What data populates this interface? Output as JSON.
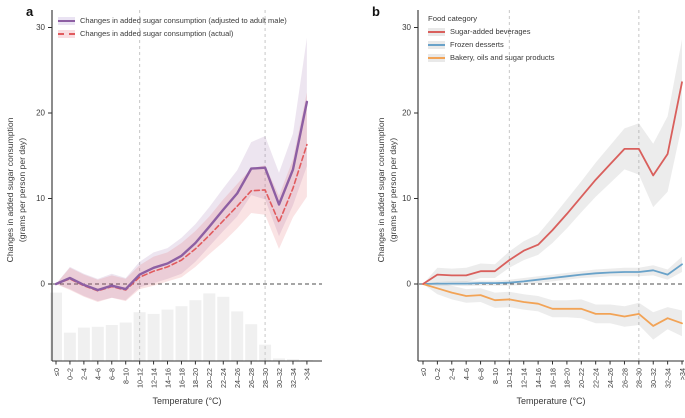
{
  "figure": {
    "panel_labels": [
      "a",
      "b"
    ]
  },
  "chart_data": [
    {
      "type": "line",
      "panel": "a",
      "xlabel": "Temperature (°C)",
      "ylabel_line1": "Changes in added sugar consumption",
      "ylabel_line2": "(grams per person per day)",
      "categories": [
        "≤0",
        "0–2",
        "2–4",
        "4–6",
        "6–8",
        "8–10",
        "10–12",
        "12–14",
        "14–16",
        "16–18",
        "18–20",
        "20–22",
        "22–24",
        "24–26",
        "26–28",
        "28–30",
        "30–32",
        "32–34",
        ">34"
      ],
      "yticks": [
        0,
        10,
        20,
        30
      ],
      "ylim": [
        -9,
        32
      ],
      "grid": "off",
      "legend_position": "top-left",
      "vline_categories": [
        "10–12",
        "28–30"
      ],
      "zero_line": 0,
      "series": [
        {
          "id": "adjusted",
          "name": "Changes in added sugar consumption (adjusted to adult male)",
          "color": "#8d5fa3",
          "dash": false,
          "width": 2.4,
          "band_color": "rgba(141,95,163,0.16)",
          "legend_band": "#eae3f3",
          "values": [
            0,
            0.7,
            -0.1,
            -0.7,
            -0.2,
            -0.6,
            1.1,
            1.9,
            2.4,
            3.3,
            4.8,
            6.7,
            8.7,
            10.6,
            13.5,
            13.6,
            9.3,
            13.4,
            21.3
          ],
          "upper": [
            0,
            2.0,
            1.2,
            0.6,
            1.2,
            0.7,
            2.6,
            3.7,
            4.2,
            5.4,
            7.0,
            9.0,
            11.2,
            13.3,
            16.6,
            17.3,
            13.0,
            17.6,
            28.8
          ],
          "lower": [
            0,
            -0.6,
            -1.4,
            -2.0,
            -1.6,
            -1.9,
            -0.4,
            0.1,
            0.6,
            1.2,
            2.6,
            4.4,
            6.2,
            7.9,
            10.4,
            9.9,
            5.6,
            9.2,
            13.8
          ]
        },
        {
          "id": "actual",
          "name": "Changes in added sugar consumption (actual)",
          "color": "#e15b5e",
          "dash": true,
          "width": 1.6,
          "band_color": "rgba(225,91,94,0.17)",
          "legend_band": "#f9dde1",
          "values": [
            0,
            0.6,
            -0.2,
            -0.8,
            -0.3,
            -0.7,
            0.8,
            1.5,
            2.0,
            2.8,
            4.1,
            5.7,
            7.4,
            9.1,
            10.9,
            11.0,
            7.2,
            11.2,
            16.3
          ],
          "upper": [
            0,
            1.9,
            1.1,
            0.5,
            1.0,
            0.6,
            2.2,
            3.2,
            3.7,
            4.8,
            6.2,
            7.9,
            9.9,
            11.7,
            13.5,
            13.9,
            10.3,
            14.6,
            22.4
          ],
          "lower": [
            0,
            -0.7,
            -1.5,
            -2.1,
            -1.6,
            -2.0,
            -0.6,
            -0.2,
            0.3,
            0.8,
            2.0,
            3.5,
            4.9,
            6.5,
            8.3,
            8.1,
            4.1,
            7.8,
            10.2
          ]
        }
      ],
      "histogram": {
        "color": "#f0f0f0",
        "baseline": -9,
        "heights": [
          8.0,
          3.3,
          3.9,
          4.0,
          4.2,
          4.5,
          5.7,
          5.5,
          6.0,
          6.4,
          7.1,
          7.9,
          7.5,
          5.8,
          4.3,
          1.9,
          0.3,
          0.2,
          0.1
        ]
      }
    },
    {
      "type": "line",
      "panel": "b",
      "legend_title": "Food category",
      "xlabel": "Temperature (°C)",
      "ylabel_line1": "Changes in added sugar consumption",
      "ylabel_line2": "(grams per person per day)",
      "categories": [
        "≤0",
        "0–2",
        "2–4",
        "4–6",
        "6–8",
        "8–10",
        "10–12",
        "12–14",
        "14–16",
        "16–18",
        "18–20",
        "20–22",
        "22–24",
        "24–26",
        "26–28",
        "28–30",
        "30–32",
        "32–34",
        ">34"
      ],
      "yticks": [
        0,
        10,
        20,
        30
      ],
      "ylim": [
        -9,
        32
      ],
      "grid": "off",
      "legend_position": "top-left",
      "vline_categories": [
        "10–12",
        "28–30"
      ],
      "zero_line": 0,
      "series": [
        {
          "id": "beverages",
          "name": "Sugar-added beverages",
          "color": "#d95f5c",
          "dash": false,
          "width": 1.8,
          "band_color": "rgba(140,140,140,0.17)",
          "legend_band": "#e9e9e9",
          "values": [
            0,
            1.1,
            1.0,
            1.0,
            1.5,
            1.5,
            2.8,
            3.9,
            4.6,
            6.3,
            8.2,
            10.2,
            12.2,
            14.0,
            15.8,
            15.8,
            12.7,
            15.2,
            23.6
          ],
          "upper": [
            0,
            1.9,
            1.8,
            1.9,
            2.4,
            2.3,
            3.8,
            5.0,
            5.8,
            7.8,
            9.9,
            12.0,
            14.2,
            16.2,
            18.2,
            18.8,
            16.4,
            19.6,
            28.6
          ],
          "lower": [
            0,
            0.3,
            0.2,
            0.2,
            0.7,
            0.7,
            1.9,
            2.8,
            3.4,
            4.8,
            6.5,
            8.4,
            10.2,
            11.8,
            13.4,
            12.8,
            9.0,
            10.8,
            18.6
          ]
        },
        {
          "id": "bakery",
          "name": "Bakery, oils and sugar products",
          "color": "#f2a356",
          "dash": false,
          "width": 1.8,
          "band_color": "rgba(140,140,140,0.17)",
          "legend_band": "#e9e9e9",
          "values": [
            0,
            -0.5,
            -1.0,
            -1.4,
            -1.3,
            -1.9,
            -1.8,
            -2.1,
            -2.3,
            -2.9,
            -2.9,
            -2.9,
            -3.5,
            -3.5,
            -3.8,
            -3.5,
            -4.9,
            -4.0,
            -4.6
          ],
          "upper": [
            0,
            0.2,
            -0.2,
            -0.6,
            -0.5,
            -1.0,
            -0.9,
            -1.2,
            -1.4,
            -1.9,
            -1.9,
            -1.8,
            -2.4,
            -2.4,
            -2.6,
            -2.2,
            -3.3,
            -2.7,
            -3.1
          ],
          "lower": [
            0,
            -1.2,
            -1.8,
            -2.2,
            -2.1,
            -2.8,
            -2.7,
            -3.0,
            -3.2,
            -3.9,
            -3.9,
            -4.0,
            -4.6,
            -4.6,
            -5.0,
            -4.8,
            -6.5,
            -5.3,
            -6.1
          ]
        },
        {
          "id": "frozen",
          "name": "Frozen desserts",
          "color": "#69a2c9",
          "dash": false,
          "width": 1.8,
          "band_color": "rgba(140,140,140,0.17)",
          "legend_band": "#e9e9e9",
          "values": [
            0,
            0.05,
            0.05,
            0.05,
            0.1,
            0.1,
            0.15,
            0.3,
            0.5,
            0.7,
            0.9,
            1.1,
            1.25,
            1.35,
            1.4,
            1.4,
            1.6,
            1.1,
            2.3
          ],
          "upper": [
            0,
            0.3,
            0.3,
            0.35,
            0.4,
            0.4,
            0.5,
            0.7,
            0.9,
            1.1,
            1.3,
            1.5,
            1.7,
            1.8,
            1.9,
            1.9,
            2.2,
            1.7,
            3.2
          ],
          "lower": [
            0,
            -0.2,
            -0.2,
            -0.25,
            -0.2,
            -0.2,
            -0.2,
            -0.1,
            0.1,
            0.3,
            0.5,
            0.7,
            0.8,
            0.9,
            0.9,
            0.9,
            1.0,
            0.5,
            1.4
          ]
        }
      ]
    }
  ]
}
